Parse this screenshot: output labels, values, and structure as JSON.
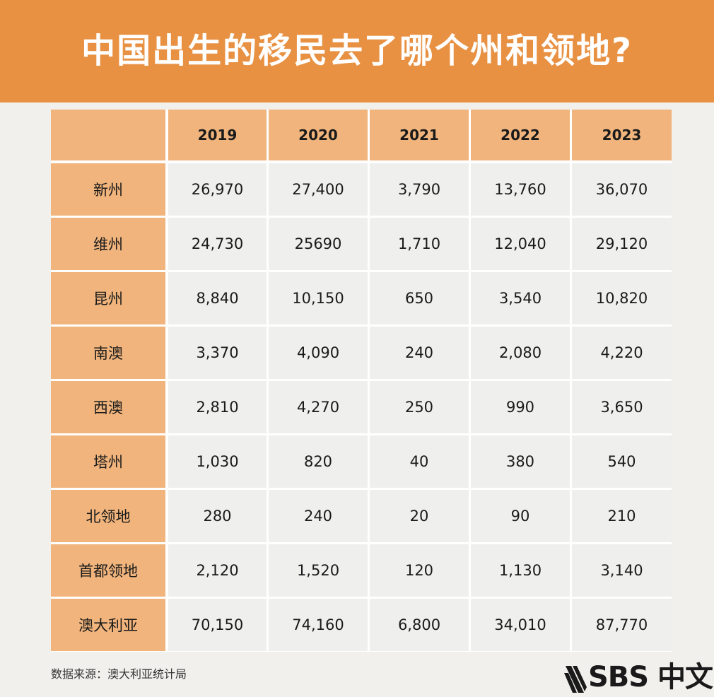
{
  "title": "中国出生的移民去了哪个州和领地?",
  "source": "数据来源：澳大利亚统计局",
  "logo_text": "SBS 中文",
  "colors": {
    "banner": "#e89143",
    "header_cell": "#f0b47c",
    "value_cell": "#efefee",
    "background": "#f2f0ec"
  },
  "chart_data": {
    "type": "table",
    "columns": [
      "",
      "2019",
      "2020",
      "2021",
      "2022",
      "2023"
    ],
    "rows": [
      {
        "label": "新州",
        "values": [
          "26,970",
          "27,400",
          "3,790",
          "13,760",
          "36,070"
        ]
      },
      {
        "label": "维州",
        "values": [
          "24,730",
          "25690",
          "1,710",
          "12,040",
          "29,120"
        ]
      },
      {
        "label": "昆州",
        "values": [
          "8,840",
          "10,150",
          "650",
          "3,540",
          "10,820"
        ]
      },
      {
        "label": "南澳",
        "values": [
          "3,370",
          "4,090",
          "240",
          "2,080",
          "4,220"
        ]
      },
      {
        "label": "西澳",
        "values": [
          "2,810",
          "4,270",
          "250",
          "990",
          "3,650"
        ]
      },
      {
        "label": "塔州",
        "values": [
          "1,030",
          "820",
          "40",
          "380",
          "540"
        ]
      },
      {
        "label": "北领地",
        "values": [
          "280",
          "240",
          "20",
          "90",
          "210"
        ]
      },
      {
        "label": "首都领地",
        "values": [
          "2,120",
          "1,520",
          "120",
          "1,130",
          "3,140"
        ]
      },
      {
        "label": "澳大利亚",
        "values": [
          "70,150",
          "74,160",
          "6,800",
          "34,010",
          "87,770"
        ]
      }
    ]
  }
}
